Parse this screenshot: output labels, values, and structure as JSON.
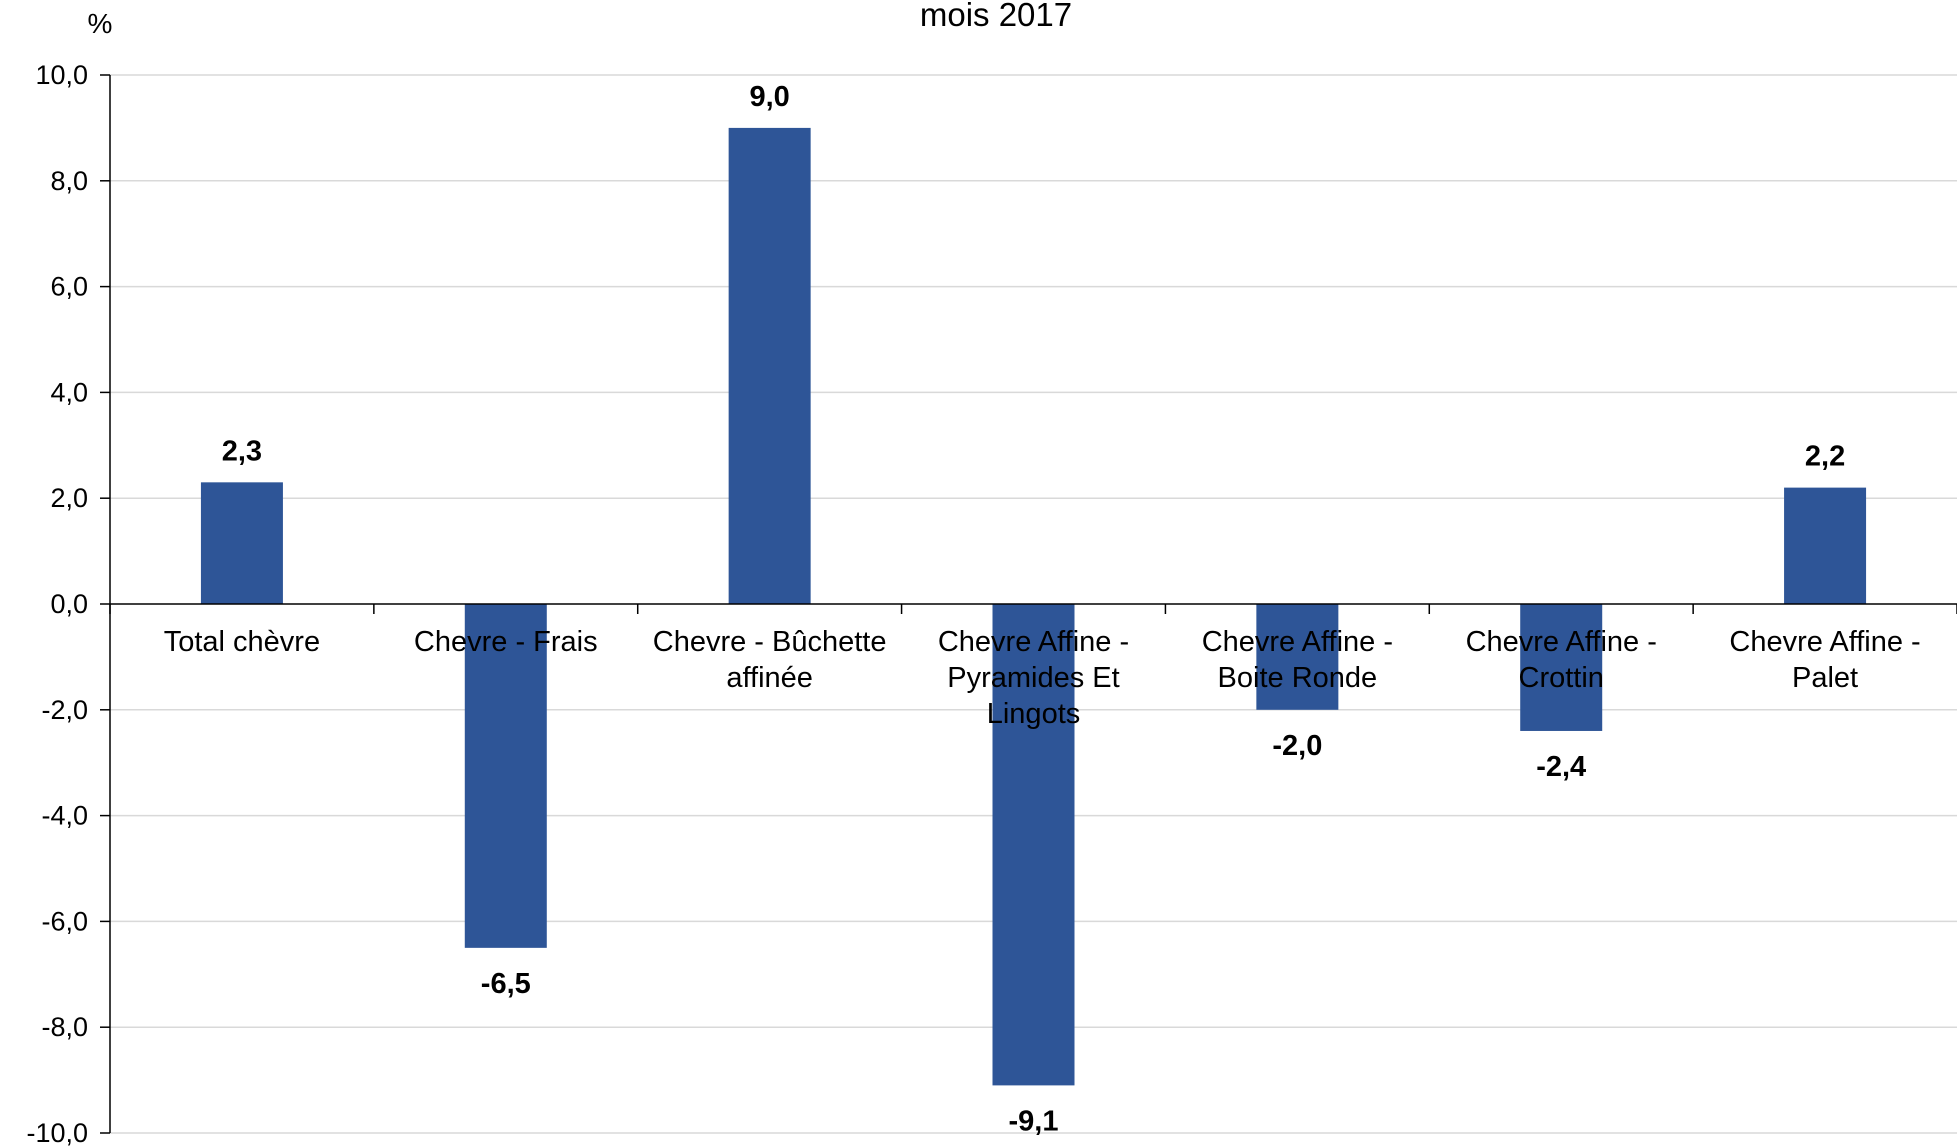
{
  "title": "mois 2017",
  "unit": "%",
  "chart_data": {
    "type": "bar",
    "title": "mois 2017",
    "ylabel": "%",
    "xlabel": "",
    "ylim": [
      -10,
      10
    ],
    "yticks": [
      10,
      8,
      6,
      4,
      2,
      0,
      -2,
      -4,
      -6,
      -8,
      -10
    ],
    "ytick_labels": [
      "10,0",
      "8,0",
      "6,0",
      "4,0",
      "2,0",
      "0,0",
      "-2,0",
      "-4,0",
      "-6,0",
      "-8,0",
      "-10,0"
    ],
    "grid": true,
    "bar_color": "#2E5597",
    "categories": [
      [
        "Total chèvre"
      ],
      [
        "Chevre - Frais"
      ],
      [
        "Chevre - Bûchette",
        "affinée"
      ],
      [
        "Chevre Affine -",
        "Pyramides Et",
        "Lingots"
      ],
      [
        "Chevre Affine -",
        "Boite Ronde"
      ],
      [
        "Chevre Affine -",
        "Crottin"
      ],
      [
        "Chevre Affine -",
        "Palet"
      ]
    ],
    "values": [
      2.3,
      -6.5,
      9.0,
      -9.1,
      -2.0,
      -2.4,
      2.2
    ],
    "data_labels": [
      "2,3",
      "-6,5",
      "9,0",
      "-9,1",
      "-2,0",
      "-2,4",
      "2,2"
    ]
  }
}
